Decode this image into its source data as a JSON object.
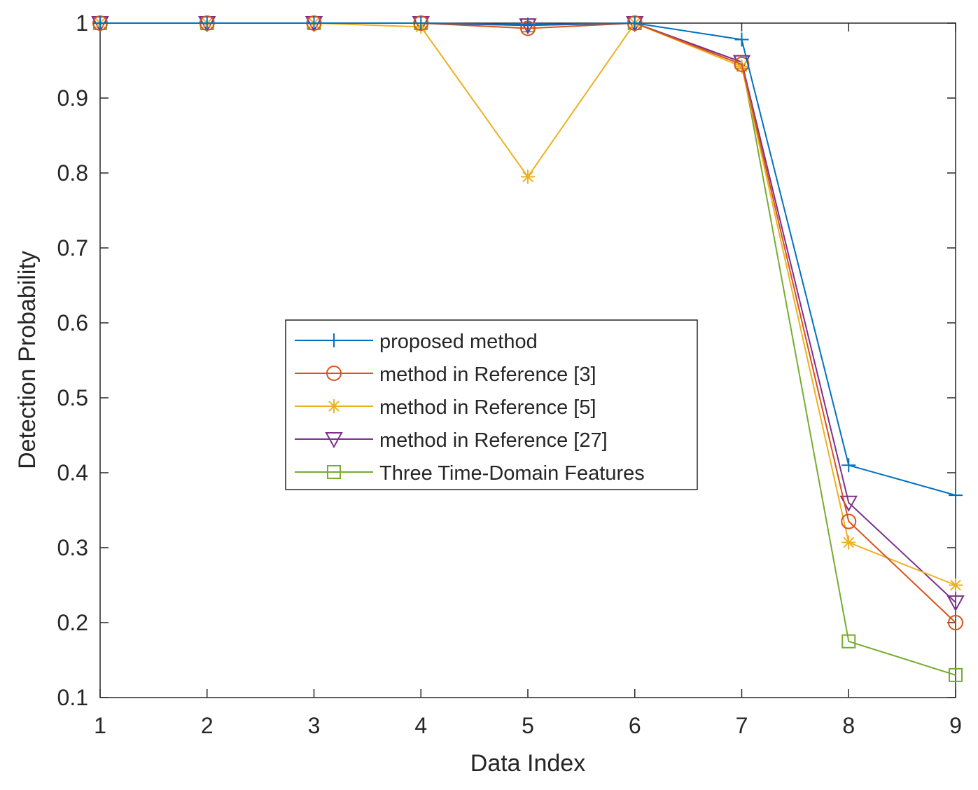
{
  "chart_data": {
    "type": "line",
    "title": "",
    "xlabel": "Data Index",
    "ylabel": "Detection Probability",
    "x": [
      1,
      2,
      3,
      4,
      5,
      6,
      7,
      8,
      9
    ],
    "xlim": [
      1,
      9
    ],
    "ylim": [
      0.1,
      1.0
    ],
    "xticks": [
      "1",
      "2",
      "3",
      "4",
      "5",
      "6",
      "7",
      "8",
      "9"
    ],
    "yticks": [
      "0.1",
      "0.2",
      "0.3",
      "0.4",
      "0.5",
      "0.6",
      "0.7",
      "0.8",
      "0.9",
      "1"
    ],
    "grid": false,
    "legend_position": "center",
    "series": [
      {
        "name": "proposed method",
        "color": "#0072BD",
        "marker": "plus",
        "values": [
          1.0,
          1.0,
          1.0,
          1.0,
          0.998,
          1.0,
          0.978,
          0.41,
          0.37
        ]
      },
      {
        "name": "method in Reference [3]",
        "color": "#D95319",
        "marker": "circle",
        "values": [
          1.0,
          1.0,
          1.0,
          1.0,
          0.993,
          1.0,
          0.945,
          0.335,
          0.2
        ]
      },
      {
        "name": "method in Reference [5]",
        "color": "#EDB120",
        "marker": "asterisk",
        "values": [
          1.0,
          1.0,
          1.0,
          0.995,
          0.795,
          1.0,
          0.942,
          0.307,
          0.25
        ]
      },
      {
        "name": "method in Reference [27]",
        "color": "#7E2F8E",
        "marker": "triangle-down",
        "values": [
          1.0,
          1.0,
          1.0,
          1.0,
          0.997,
          1.0,
          0.948,
          0.36,
          0.227
        ]
      },
      {
        "name": "Three Time-Domain Features",
        "color": "#77AC30",
        "marker": "square",
        "values": [
          1.0,
          1.0,
          1.0,
          1.0,
          0.997,
          1.0,
          0.948,
          0.175,
          0.13
        ]
      }
    ]
  }
}
